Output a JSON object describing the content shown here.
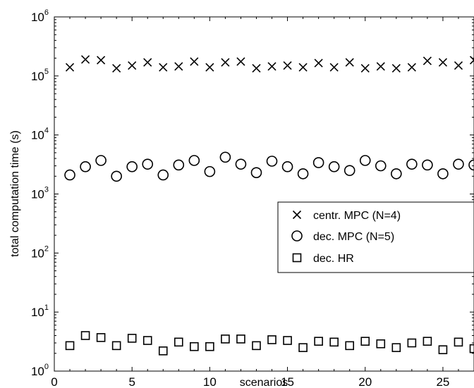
{
  "chart_data": {
    "type": "scatter",
    "xlabel": "scenarios",
    "ylabel": "total computation time (s)",
    "xlim": [
      0,
      27
    ],
    "ylim": [
      1,
      1000000
    ],
    "y_scale": "log",
    "grid": false,
    "legend_position": "center-right",
    "x_ticks": [
      "0",
      "5",
      "10",
      "15",
      "20",
      "25"
    ],
    "x_tick_values": [
      0,
      5,
      10,
      15,
      20,
      25
    ],
    "y_ticks": [
      {
        "base": "10",
        "exp": "0"
      },
      {
        "base": "10",
        "exp": "1"
      },
      {
        "base": "10",
        "exp": "2"
      },
      {
        "base": "10",
        "exp": "3"
      },
      {
        "base": "10",
        "exp": "4"
      },
      {
        "base": "10",
        "exp": "5"
      },
      {
        "base": "10",
        "exp": "6"
      }
    ],
    "y_tick_values": [
      1,
      10,
      100,
      1000,
      10000,
      100000,
      1000000
    ],
    "series": [
      {
        "name": "centr. MPC (N=4)",
        "marker": "x",
        "x": [
          1,
          2,
          3,
          4,
          5,
          6,
          7,
          8,
          9,
          10,
          11,
          12,
          13,
          14,
          15,
          16,
          17,
          18,
          19,
          20,
          21,
          22,
          23,
          24,
          25,
          26,
          27
        ],
        "y": [
          140000,
          190000,
          185000,
          135000,
          150000,
          170000,
          140000,
          145000,
          175000,
          140000,
          170000,
          175000,
          135000,
          145000,
          150000,
          140000,
          165000,
          140000,
          170000,
          135000,
          145000,
          135000,
          140000,
          180000,
          170000,
          150000,
          185000
        ]
      },
      {
        "name": "dec. MPC (N=5)",
        "marker": "circle",
        "x": [
          1,
          2,
          3,
          4,
          5,
          6,
          7,
          8,
          9,
          10,
          11,
          12,
          13,
          14,
          15,
          16,
          17,
          18,
          19,
          20,
          21,
          22,
          23,
          24,
          25,
          26,
          27
        ],
        "y": [
          2100,
          2900,
          3700,
          2000,
          2900,
          3200,
          2100,
          3100,
          3700,
          2400,
          4200,
          3200,
          2300,
          3600,
          2900,
          2200,
          3400,
          2900,
          2500,
          3700,
          3000,
          2200,
          3200,
          3100,
          2200,
          3200,
          3100
        ]
      },
      {
        "name": "dec. HR",
        "marker": "square",
        "x": [
          1,
          2,
          3,
          4,
          5,
          6,
          7,
          8,
          9,
          10,
          11,
          12,
          13,
          14,
          15,
          16,
          17,
          18,
          19,
          20,
          21,
          22,
          23,
          24,
          25,
          26,
          27
        ],
        "y": [
          2.7,
          4.0,
          3.7,
          2.7,
          3.6,
          3.3,
          2.2,
          3.1,
          2.6,
          2.6,
          3.5,
          3.5,
          2.7,
          3.4,
          3.3,
          2.5,
          3.2,
          3.1,
          2.7,
          3.2,
          2.9,
          2.5,
          3.0,
          3.2,
          2.3,
          3.1,
          2.4
        ]
      }
    ]
  }
}
